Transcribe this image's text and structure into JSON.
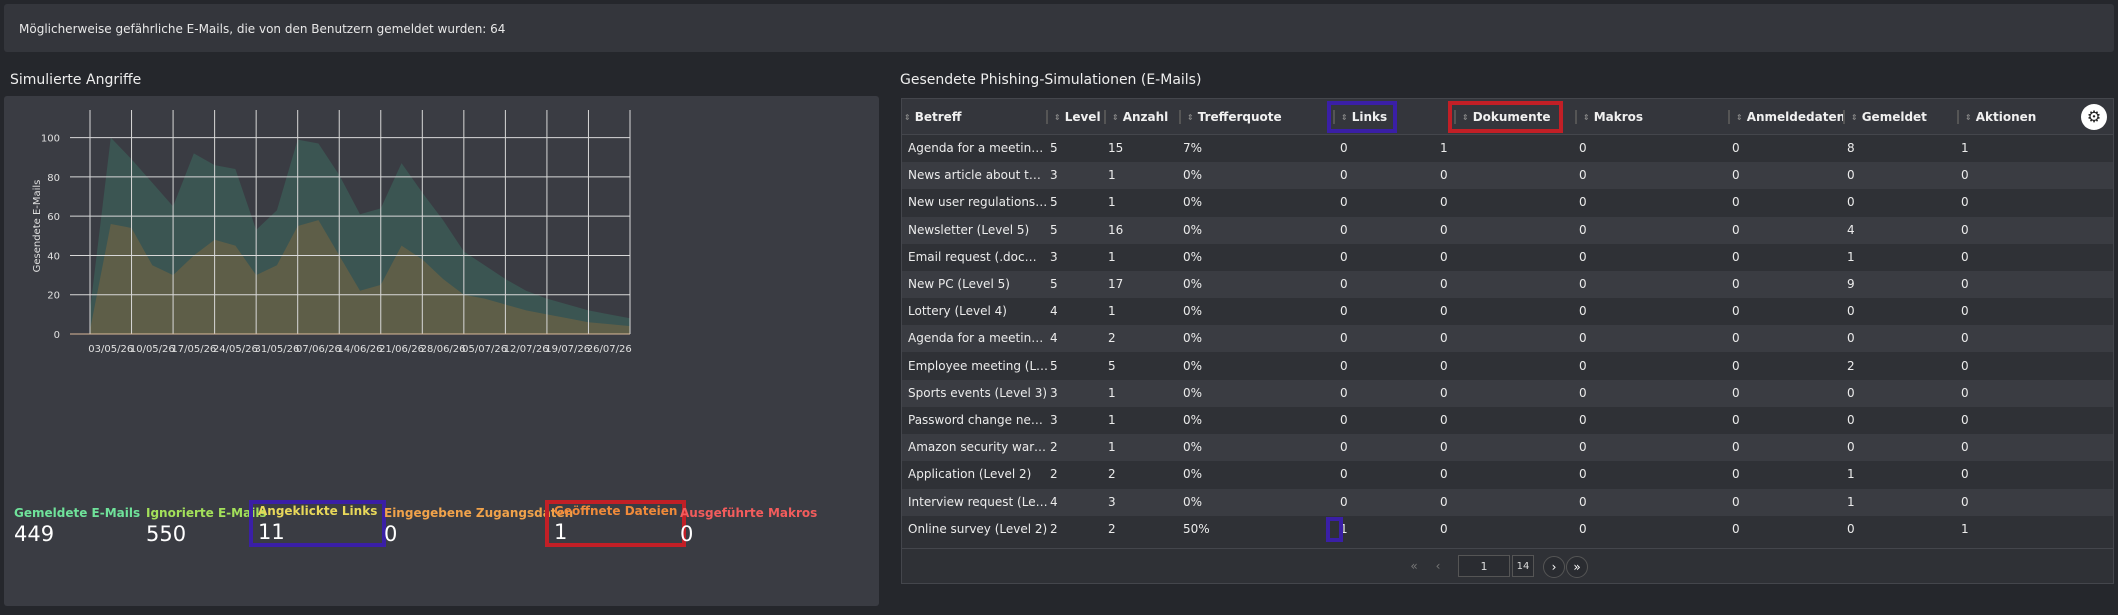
{
  "banner": {
    "text": "Möglicherweise gefährliche E-Mails, die von den Benutzern gemeldet wurden: 64"
  },
  "left_section": {
    "title": "Simulierte Angriffe"
  },
  "right_section": {
    "title": "Gesendete Phishing-Simulationen (E-Mails)"
  },
  "colors": {
    "green_area": "#3d6a5e",
    "orange_area": "#8a6a3c",
    "purple_box": "#3a1fa6",
    "red_box": "#c21f26"
  },
  "chart_data": {
    "type": "area",
    "ylabel": "Gesendete E-Mails",
    "xlabel": "",
    "ylim": [
      0,
      110
    ],
    "yticks": [
      0,
      20,
      40,
      60,
      80,
      100
    ],
    "categories": [
      "03/05/26",
      "10/05/26",
      "17/05/26",
      "24/05/26",
      "31/05/26",
      "07/06/26",
      "14/06/26",
      "21/06/26",
      "28/06/26",
      "05/07/26",
      "12/07/26",
      "19/07/26",
      "26/07/26"
    ],
    "x": [
      0,
      1,
      2,
      3,
      4,
      5,
      6,
      7,
      8,
      9,
      10,
      11,
      12,
      13,
      14,
      15,
      16,
      17,
      18,
      19,
      20,
      21,
      22,
      23,
      24,
      25,
      26
    ],
    "series": [
      {
        "values": [
          12,
          100,
          89,
          77,
          65,
          92,
          86,
          84,
          53,
          63,
          99,
          97,
          81,
          61,
          64,
          87,
          72,
          58,
          42,
          35,
          28,
          22,
          18,
          15,
          12,
          10,
          8
        ]
      },
      {
        "values": [
          2,
          56,
          54,
          35,
          30,
          40,
          48,
          45,
          30,
          35,
          55,
          58,
          40,
          22,
          25,
          45,
          38,
          28,
          20,
          18,
          15,
          12,
          10,
          8,
          6,
          5,
          4
        ]
      }
    ],
    "grid": true
  },
  "stats": [
    {
      "label": "Gemeldete E-Mails",
      "value": "449",
      "color": "#6fe29a"
    },
    {
      "label": "Ignorierte E-Mails",
      "value": "550",
      "color": "#a3e05a"
    },
    {
      "label": "Angeklickte Links",
      "value": "11",
      "color": "#e8d85a"
    },
    {
      "label": "Eingegebene Zugangsdaten",
      "value": "0",
      "color": "#f0a24a"
    },
    {
      "label": "Geöffnete Dateien",
      "value": "1",
      "color": "#f08a3a"
    },
    {
      "label": "Ausgeführte Makros",
      "value": "0",
      "color": "#f25c5c"
    }
  ],
  "table": {
    "headers": [
      "Betreff",
      "Level",
      "Anzahl",
      "Trefferquote",
      "Links",
      "Dokumente",
      "Makros",
      "Anmeldedaten",
      "Gemeldet",
      "Aktionen"
    ],
    "rows": [
      [
        "Agenda for a meeting (...",
        "5",
        "15",
        "7%",
        "0",
        "1",
        "0",
        "0",
        "8",
        "1"
      ],
      [
        "News article about the ...",
        "3",
        "1",
        "0%",
        "0",
        "0",
        "0",
        "0",
        "0",
        "0"
      ],
      [
        "New user regulations (...",
        "5",
        "1",
        "0%",
        "0",
        "0",
        "0",
        "0",
        "0",
        "0"
      ],
      [
        "Newsletter (Level 5)",
        "5",
        "16",
        "0%",
        "0",
        "0",
        "0",
        "0",
        "4",
        "0"
      ],
      [
        "Email request (.docm) (...",
        "3",
        "1",
        "0%",
        "0",
        "0",
        "0",
        "0",
        "1",
        "0"
      ],
      [
        "New PC (Level 5)",
        "5",
        "17",
        "0%",
        "0",
        "0",
        "0",
        "0",
        "9",
        "0"
      ],
      [
        "Lottery (Level 4)",
        "4",
        "1",
        "0%",
        "0",
        "0",
        "0",
        "0",
        "0",
        "0"
      ],
      [
        "Agenda for a meeting (...",
        "4",
        "2",
        "0%",
        "0",
        "0",
        "0",
        "0",
        "0",
        "0"
      ],
      [
        "Employee meeting (Le...",
        "5",
        "5",
        "0%",
        "0",
        "0",
        "0",
        "0",
        "2",
        "0"
      ],
      [
        "Sports events (Level 3)",
        "3",
        "1",
        "0%",
        "0",
        "0",
        "0",
        "0",
        "0",
        "0"
      ],
      [
        "Password change nece...",
        "3",
        "1",
        "0%",
        "0",
        "0",
        "0",
        "0",
        "0",
        "0"
      ],
      [
        "Amazon security warni...",
        "2",
        "1",
        "0%",
        "0",
        "0",
        "0",
        "0",
        "0",
        "0"
      ],
      [
        "Application (Level 2)",
        "2",
        "2",
        "0%",
        "0",
        "0",
        "0",
        "0",
        "1",
        "0"
      ],
      [
        "Interview request (Lev...",
        "4",
        "3",
        "0%",
        "0",
        "0",
        "0",
        "0",
        "1",
        "0"
      ],
      [
        "Online survey (Level 2)",
        "2",
        "2",
        "50%",
        "1",
        "0",
        "0",
        "0",
        "0",
        "1"
      ]
    ]
  },
  "pagination": {
    "current_page": "1",
    "total_pages": "14",
    "first": "«",
    "prev": "‹",
    "next": "›",
    "last": "»"
  },
  "settings_icon": "gear-icon"
}
